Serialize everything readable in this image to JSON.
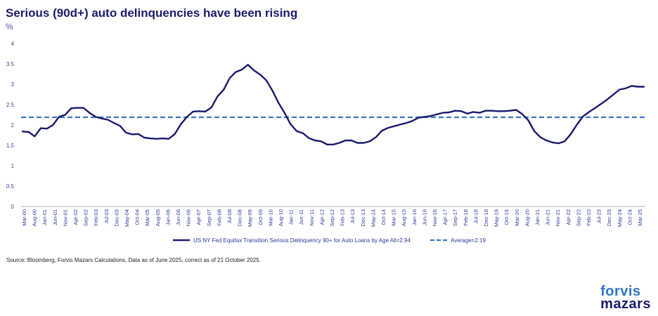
{
  "title": "Serious (90d+) auto delinquencies have been rising",
  "unit": "%",
  "source": "Source: Bloomberg, Forvis Mazars Calculations, Data as of June 2025, correct as of 21 October 2025.",
  "logo": {
    "line1": "forvis",
    "line2": "mazars"
  },
  "colors": {
    "series": "#1b1a6c",
    "average": "#3b78bf",
    "axis": "#2b3a9a",
    "ytick": "#3e4aa0"
  },
  "chart_data": {
    "type": "line",
    "title": "Serious (90d+) auto delinquencies have been rising",
    "xlabel": "",
    "ylabel": "%",
    "ylim": [
      0,
      4
    ],
    "yticks": [
      "0",
      "0.5",
      "1",
      "1.5",
      "2",
      "2.5",
      "3",
      "3.5",
      "4"
    ],
    "grid": false,
    "legend_position": "bottom",
    "x_tick_labels": [
      "Mar-00",
      "Aug-00",
      "Jan-01",
      "Jun-01",
      "Nov-01",
      "Apr-02",
      "Sep-02",
      "Feb-03",
      "Jul-03",
      "Dec-03",
      "May-04",
      "Oct-04",
      "Mar-05",
      "Aug-05",
      "Jan-06",
      "Jun-06",
      "Nov-06",
      "Apr-07",
      "Sep-07",
      "Feb-08",
      "Jul-08",
      "Dec-08",
      "May-09",
      "Oct-09",
      "Mar-10",
      "Aug-10",
      "Jan-11",
      "Jun-11",
      "Nov-11",
      "Apr-12",
      "Sep-12",
      "Feb-13",
      "Jul-13",
      "Dec-13",
      "May-14",
      "Oct-14",
      "Mar-15",
      "Aug-15",
      "Jan-16",
      "Jun-16",
      "Nov-16",
      "Apr-17",
      "Sep-17",
      "Feb-18",
      "Jul-18",
      "Dec-18",
      "May-19",
      "Oct-19",
      "Mar-20",
      "Aug-20",
      "Jan-21",
      "Jun-21",
      "Nov-21",
      "Apr-22",
      "Sep-22",
      "Feb-23",
      "Jul-23",
      "Dec-23",
      "May-24",
      "Oct-24",
      "Mar-25"
    ],
    "series": [
      {
        "name": "US NY Fed Equifax Transition Serious Delinquency 90+ for Auto Loans by Age All=2.94",
        "style": "solid",
        "values": [
          1.84,
          1.83,
          1.72,
          1.92,
          1.91,
          2.0,
          2.2,
          2.25,
          2.41,
          2.42,
          2.42,
          2.3,
          2.2,
          2.16,
          2.13,
          2.05,
          1.98,
          1.81,
          1.77,
          1.78,
          1.69,
          1.67,
          1.66,
          1.67,
          1.66,
          1.78,
          2.02,
          2.2,
          2.33,
          2.34,
          2.33,
          2.43,
          2.7,
          2.86,
          3.15,
          3.3,
          3.36,
          3.48,
          3.34,
          3.24,
          3.1,
          2.85,
          2.55,
          2.3,
          2.02,
          1.85,
          1.8,
          1.68,
          1.62,
          1.6,
          1.52,
          1.52,
          1.56,
          1.62,
          1.62,
          1.56,
          1.56,
          1.6,
          1.7,
          1.86,
          1.93,
          1.97,
          2.01,
          2.05,
          2.1,
          2.18,
          2.2,
          2.22,
          2.26,
          2.3,
          2.31,
          2.35,
          2.34,
          2.28,
          2.32,
          2.3,
          2.35,
          2.35,
          2.34,
          2.34,
          2.35,
          2.37,
          2.27,
          2.12,
          1.85,
          1.7,
          1.62,
          1.57,
          1.55,
          1.6,
          1.78,
          2.01,
          2.21,
          2.32,
          2.42,
          2.52,
          2.63,
          2.75,
          2.87,
          2.9,
          2.96,
          2.94,
          2.94
        ]
      },
      {
        "name": "Average=2.19",
        "style": "dashed",
        "values": [
          2.19
        ]
      }
    ]
  }
}
